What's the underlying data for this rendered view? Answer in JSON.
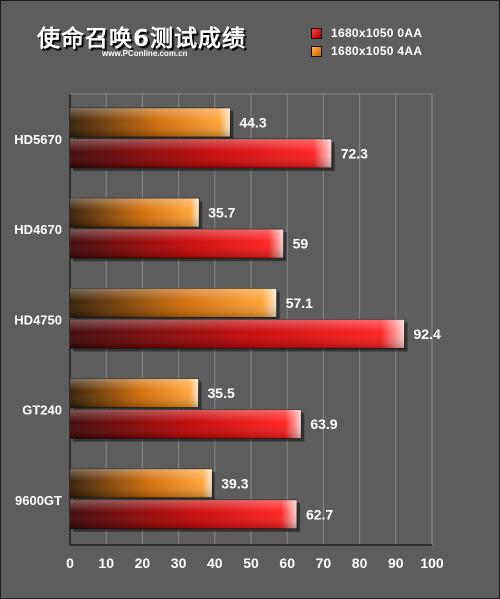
{
  "title": "使命召唤6测试成绩",
  "subtitle": "www.PConline.com.cn",
  "colors": {
    "background": "#5d5d5d",
    "grid": "#8a8a8a",
    "series_0aa": "#e01010",
    "series_4aa": "#ff8c1a"
  },
  "chart_data": {
    "type": "bar",
    "orientation": "horizontal",
    "title": "使命召唤6测试成绩",
    "categories": [
      "HD5670",
      "HD4670",
      "HD4750",
      "GT240",
      "9600GT"
    ],
    "series": [
      {
        "name": "1680x1050 4AA",
        "values": [
          44.3,
          35.7,
          57.1,
          35.5,
          39.3
        ]
      },
      {
        "name": "1680x1050 0AA",
        "values": [
          72.3,
          59,
          92.4,
          63.9,
          62.7
        ]
      }
    ],
    "xlim": [
      0,
      100
    ],
    "xticks": [
      0,
      10,
      20,
      30,
      40,
      50,
      60,
      70,
      80,
      90,
      100
    ],
    "grid": true,
    "legend_position": "top-right",
    "legend_order": [
      "1680x1050 0AA",
      "1680x1050 4AA"
    ]
  }
}
